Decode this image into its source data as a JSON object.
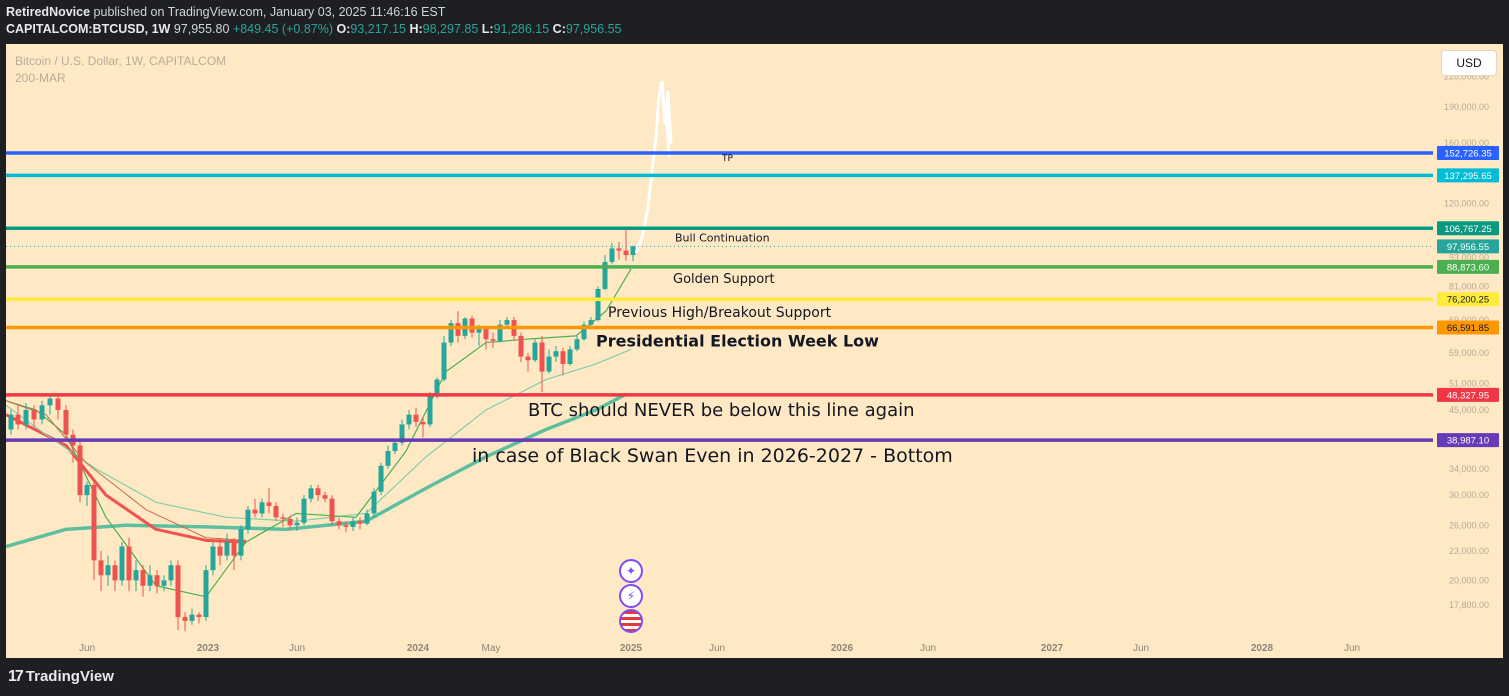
{
  "header": {
    "author": "RetiredNovice",
    "published_text": "published on TradingView.com, January 03, 2025 11:46:16 EST",
    "symbol": "CAPITALCOM:BTCUSD, 1W",
    "last": "97,955.80",
    "change": "+849.45 (+0.87%)",
    "o_label": "O:",
    "o_value": "93,217.15",
    "h_label": "H:",
    "h_value": "98,297.85",
    "l_label": "L:",
    "l_value": "91,286.15",
    "c_label": "C:",
    "c_value": "97,956.55"
  },
  "legend": {
    "title": "Bitcoin / U.S. Dollar, 1W, CAPITALCOM",
    "indicator": "200-MAR"
  },
  "currency_button": "USD",
  "footer": {
    "brand": "TradingView"
  },
  "colors": {
    "background": "#ffe9c4",
    "up": "#26a69a",
    "down": "#ef5350"
  },
  "price_axis": [
    "220,000.00",
    "190,000.00",
    "160,000.00",
    "120,000.00",
    "93,000.00",
    "81,000.00",
    "69,000.00",
    "59,000.00",
    "51,000.00",
    "45,000.00",
    "34,000.00",
    "30,000.00",
    "26,000.00",
    "23,000.00",
    "20,000.00",
    "17,800.00"
  ],
  "time_axis": [
    "Jun",
    "2023",
    "Jun",
    "2024",
    "May",
    "2025",
    "Jun",
    "2026",
    "Jun",
    "2027",
    "Jun",
    "2028",
    "Jun"
  ],
  "levels": [
    {
      "label": "TP",
      "value": "152,726.35",
      "color": "#2962ff"
    },
    {
      "label": "",
      "value": "137,295.65",
      "color": "#00bcd4"
    },
    {
      "label": "Bull Continuation",
      "value": "106,767.25",
      "color": "#089981"
    },
    {
      "label": "",
      "value": "97,956.55",
      "color": "#26a69a"
    },
    {
      "label": "Golden Support",
      "value": "88,873.60",
      "color": "#4caf50"
    },
    {
      "label": "Previous High/Breakout Support",
      "value": "76,200.25",
      "color": "#ffeb3b"
    },
    {
      "label": "Presidential Election Week Low",
      "value": "66,591.85",
      "color": "#ff9800"
    },
    {
      "label": "BTC should NEVER be below this line again",
      "value": "48,327.95",
      "color": "#f23645"
    },
    {
      "label": "in case of Black Swan Even in 2026-2027 - Bottom",
      "value": "38,987.10",
      "color": "#673ab7"
    }
  ],
  "event_icons": [
    "sparkle-icon",
    "lightning-icon",
    "us-flag-icon"
  ]
}
